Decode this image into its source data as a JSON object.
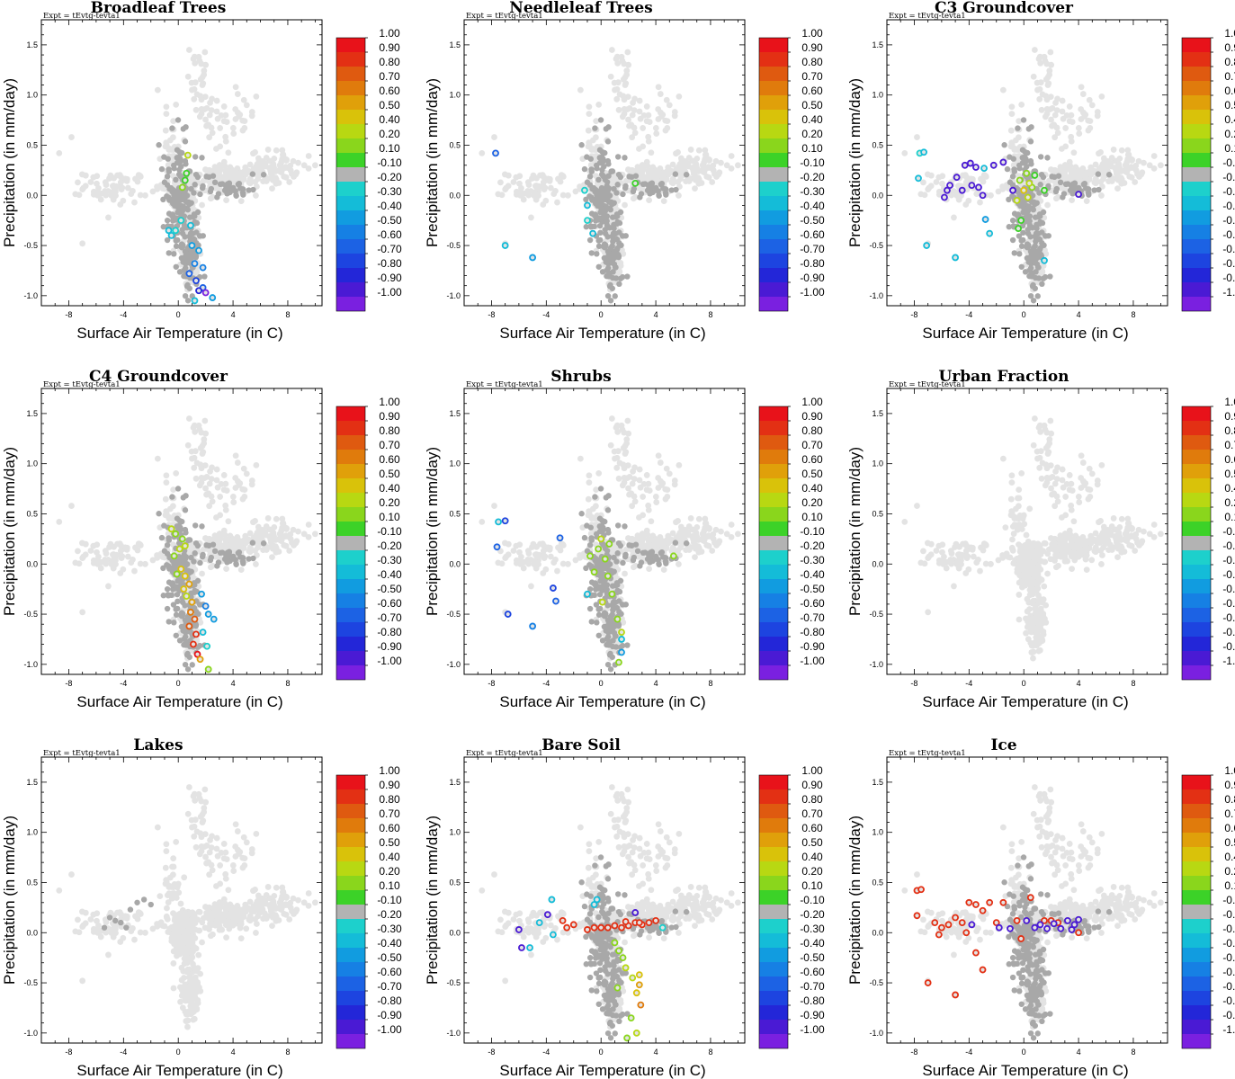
{
  "chart_data": {
    "type": "scatter",
    "shared": {
      "expt_label": "Expt = tEvtg-tevta1",
      "xlabel": "Surface Air Temperature (in C)",
      "ylabel": "Precipitation (in mm/day)",
      "xlim": [
        -10,
        10.5
      ],
      "ylim": [
        -1.1,
        1.75
      ],
      "xticks": [
        "-8",
        "-4",
        "0",
        "4",
        "8"
      ],
      "xtick_values": [
        -8,
        -4,
        0,
        4,
        8
      ],
      "yticks": [
        "-1.0",
        "-0.5",
        "0.0",
        "0.5",
        "1.0",
        "1.5"
      ],
      "ytick_values": [
        -1.0,
        -0.5,
        0.0,
        0.5,
        1.0,
        1.5
      ],
      "colorbar_labels": [
        "1.00",
        "0.90",
        "0.80",
        "0.70",
        "0.60",
        "0.50",
        "0.40",
        "0.20",
        "0.10",
        "-0.10",
        "-0.20",
        "-0.30",
        "-0.40",
        "-0.50",
        "-0.60",
        "-0.70",
        "-0.80",
        "-0.90",
        "-1.00"
      ],
      "colorbar_colors": [
        "#e8121a",
        "#e33014",
        "#df5a10",
        "#e07b0c",
        "#e0a00a",
        "#d9c20a",
        "#b8d812",
        "#8ad61c",
        "#3cd228",
        "#b3b3b3",
        "#1dd0cc",
        "#14bcd8",
        "#119ce0",
        "#1680e4",
        "#1c62e4",
        "#1d44e0",
        "#2326d8",
        "#4a1ad4",
        "#7a20e0"
      ],
      "background_color": "#e3e3e3",
      "neutral_color": "#a8a8a8"
    },
    "panels": [
      {
        "title": "Broadleaf Trees",
        "colored": [
          [
            0.6,
            0.22,
            0.1
          ],
          [
            0.3,
            0.08,
            0.2
          ],
          [
            0.5,
            0.15,
            0.1
          ],
          [
            -0.7,
            -0.35,
            -0.3
          ],
          [
            -0.5,
            -0.4,
            -0.3
          ],
          [
            1.0,
            -0.5,
            -0.4
          ],
          [
            1.5,
            -0.55,
            -0.4
          ],
          [
            1.2,
            -0.68,
            -0.5
          ],
          [
            1.8,
            -0.72,
            -0.5
          ],
          [
            0.8,
            -0.78,
            -0.6
          ],
          [
            1.3,
            -0.85,
            -0.7
          ],
          [
            1.8,
            -0.92,
            -0.6
          ],
          [
            1.5,
            -0.95,
            -0.8
          ],
          [
            2.0,
            -0.97,
            -1.0
          ],
          [
            2.5,
            -1.02,
            -0.4
          ],
          [
            1.2,
            -1.05,
            -0.3
          ],
          [
            0.2,
            -0.25,
            -0.2
          ],
          [
            -0.2,
            -0.35,
            -0.2
          ],
          [
            0.7,
            0.4,
            0.4
          ],
          [
            0.9,
            -0.3,
            -0.3
          ]
        ]
      },
      {
        "title": "Needleleaf Trees",
        "colored": [
          [
            -7.7,
            0.42,
            -0.6
          ],
          [
            -7.0,
            -0.5,
            -0.3
          ],
          [
            -5.0,
            -0.62,
            -0.4
          ],
          [
            -0.6,
            -0.38,
            -0.3
          ],
          [
            2.5,
            0.12,
            0.1
          ],
          [
            -1.2,
            0.05,
            -0.2
          ],
          [
            -1.0,
            -0.1,
            -0.3
          ],
          [
            -1.0,
            -0.25,
            -0.2
          ]
        ]
      },
      {
        "title": "C3 Groundcover",
        "colored": [
          [
            -7.6,
            0.42,
            -0.2
          ],
          [
            -7.3,
            0.43,
            -0.3
          ],
          [
            -7.7,
            0.17,
            -0.3
          ],
          [
            -7.1,
            -0.5,
            -0.3
          ],
          [
            -5.0,
            -0.62,
            -0.3
          ],
          [
            -2.9,
            0.27,
            -0.3
          ],
          [
            -2.8,
            -0.24,
            -0.4
          ],
          [
            -2.5,
            -0.38,
            -0.3
          ],
          [
            -5.6,
            0.05,
            -0.9
          ],
          [
            -5.8,
            -0.02,
            -0.9
          ],
          [
            -5.4,
            0.1,
            -0.9
          ],
          [
            -4.9,
            0.18,
            -0.9
          ],
          [
            -4.3,
            0.3,
            -0.9
          ],
          [
            -3.9,
            0.32,
            -0.9
          ],
          [
            -3.5,
            0.28,
            -0.9
          ],
          [
            -3.8,
            0.1,
            -0.9
          ],
          [
            -3.3,
            0.08,
            -0.9
          ],
          [
            -3.0,
            0.0,
            -0.9
          ],
          [
            -4.5,
            0.05,
            -0.9
          ],
          [
            -2.2,
            0.3,
            -0.9
          ],
          [
            -1.5,
            0.33,
            -0.9
          ],
          [
            -0.8,
            0.05,
            -0.9
          ],
          [
            4.0,
            0.01,
            -0.9
          ],
          [
            -0.5,
            -0.05,
            0.4
          ],
          [
            0.0,
            0.05,
            0.5
          ],
          [
            0.3,
            -0.02,
            0.4
          ],
          [
            0.6,
            0.08,
            0.2
          ],
          [
            -0.3,
            0.15,
            0.2
          ],
          [
            0.8,
            0.2,
            0.1
          ],
          [
            -0.2,
            -0.25,
            0.1
          ],
          [
            -0.4,
            -0.33,
            0.1
          ],
          [
            1.5,
            0.05,
            0.1
          ],
          [
            0.2,
            0.22,
            0.3
          ],
          [
            0.4,
            0.12,
            0.4
          ],
          [
            1.5,
            -0.65,
            -0.3
          ]
        ]
      },
      {
        "title": "C4 Groundcover",
        "colored": [
          [
            -0.5,
            0.35,
            0.4
          ],
          [
            -0.2,
            0.3,
            0.3
          ],
          [
            0.3,
            0.25,
            0.2
          ],
          [
            0.5,
            0.18,
            0.4
          ],
          [
            -0.3,
            0.08,
            0.3
          ],
          [
            0.2,
            -0.05,
            0.5
          ],
          [
            0.5,
            -0.12,
            0.5
          ],
          [
            0.8,
            -0.2,
            0.6
          ],
          [
            0.6,
            -0.32,
            0.4
          ],
          [
            1.0,
            -0.38,
            0.6
          ],
          [
            0.9,
            -0.48,
            0.7
          ],
          [
            1.2,
            -0.55,
            0.8
          ],
          [
            0.8,
            -0.62,
            0.8
          ],
          [
            1.3,
            -0.7,
            0.9
          ],
          [
            1.1,
            -0.8,
            0.9
          ],
          [
            1.4,
            -0.9,
            1.0
          ],
          [
            1.6,
            -0.95,
            0.6
          ],
          [
            2.2,
            -1.05,
            0.2
          ],
          [
            1.7,
            -0.3,
            -0.4
          ],
          [
            2.0,
            -0.42,
            -0.5
          ],
          [
            2.2,
            -0.5,
            -0.4
          ],
          [
            2.6,
            -0.55,
            -0.4
          ],
          [
            1.8,
            -0.68,
            -0.3
          ],
          [
            2.1,
            -0.82,
            -0.2
          ],
          [
            0.1,
            0.15,
            0.4
          ],
          [
            -0.1,
            -0.1,
            0.2
          ],
          [
            0.4,
            -0.25,
            0.5
          ]
        ]
      },
      {
        "title": "Shrubs",
        "colored": [
          [
            -7.5,
            0.42,
            -0.3
          ],
          [
            -7.0,
            0.43,
            -0.7
          ],
          [
            -7.6,
            0.17,
            -0.6
          ],
          [
            -6.8,
            -0.5,
            -0.7
          ],
          [
            -5.0,
            -0.62,
            -0.5
          ],
          [
            -3.0,
            0.26,
            -0.6
          ],
          [
            -3.5,
            -0.24,
            -0.7
          ],
          [
            -3.3,
            -0.37,
            -0.6
          ],
          [
            5.3,
            0.08,
            0.2
          ],
          [
            -0.2,
            0.15,
            0.2
          ],
          [
            0.0,
            0.25,
            0.4
          ],
          [
            0.3,
            0.05,
            0.3
          ],
          [
            0.5,
            -0.12,
            0.2
          ],
          [
            -0.5,
            -0.08,
            0.3
          ],
          [
            0.8,
            -0.3,
            0.2
          ],
          [
            1.2,
            -0.55,
            0.3
          ],
          [
            1.5,
            -0.68,
            0.4
          ],
          [
            1.5,
            -0.75,
            -0.3
          ],
          [
            1.5,
            -0.88,
            -0.4
          ],
          [
            1.3,
            -0.98,
            0.2
          ],
          [
            0.1,
            -0.38,
            0.4
          ],
          [
            -1.0,
            -0.3,
            -0.3
          ],
          [
            -0.8,
            0.08,
            0.2
          ],
          [
            0.6,
            0.2,
            0.3
          ]
        ]
      },
      {
        "title": "Urban Fraction",
        "colored": []
      },
      {
        "title": "Lakes",
        "colored": []
      },
      {
        "title": "Bare Soil",
        "colored": [
          [
            -5.8,
            -0.15,
            -0.9
          ],
          [
            -5.2,
            -0.15,
            -0.3
          ],
          [
            -3.6,
            0.33,
            -0.3
          ],
          [
            -3.9,
            0.18,
            -0.9
          ],
          [
            -3.5,
            -0.02,
            -0.3
          ],
          [
            -2.8,
            0.12,
            0.9
          ],
          [
            -2.5,
            0.05,
            0.9
          ],
          [
            -2.0,
            0.08,
            0.9
          ],
          [
            -1.0,
            0.03,
            0.9
          ],
          [
            -0.5,
            0.05,
            0.9
          ],
          [
            0.0,
            0.05,
            0.9
          ],
          [
            0.5,
            0.05,
            0.9
          ],
          [
            1.0,
            0.07,
            0.9
          ],
          [
            1.5,
            0.05,
            0.9
          ],
          [
            2.0,
            0.07,
            0.9
          ],
          [
            2.5,
            0.1,
            0.9
          ],
          [
            3.0,
            0.08,
            0.9
          ],
          [
            3.5,
            0.1,
            0.9
          ],
          [
            4.0,
            0.12,
            0.9
          ],
          [
            1.8,
            0.11,
            0.9
          ],
          [
            2.8,
            0.1,
            0.9
          ],
          [
            -0.5,
            0.28,
            -0.3
          ],
          [
            -0.3,
            0.33,
            -0.3
          ],
          [
            1.0,
            -0.1,
            0.2
          ],
          [
            1.3,
            -0.18,
            0.2
          ],
          [
            1.6,
            -0.25,
            0.3
          ],
          [
            1.8,
            -0.35,
            0.4
          ],
          [
            2.3,
            -0.45,
            0.4
          ],
          [
            2.8,
            -0.42,
            0.5
          ],
          [
            2.8,
            -0.52,
            0.6
          ],
          [
            2.9,
            -0.72,
            0.7
          ],
          [
            2.6,
            -0.6,
            0.5
          ],
          [
            2.2,
            -0.85,
            0.2
          ],
          [
            2.6,
            -1.0,
            0.4
          ],
          [
            1.9,
            -1.05,
            0.2
          ],
          [
            1.2,
            -0.55,
            0.2
          ],
          [
            -6.0,
            0.03,
            -0.9
          ],
          [
            2.5,
            0.2,
            -0.9
          ],
          [
            4.5,
            0.05,
            -0.2
          ],
          [
            -4.5,
            0.1,
            -0.3
          ]
        ]
      },
      {
        "title": "Ice",
        "colored": [
          [
            -7.8,
            0.42,
            0.9
          ],
          [
            -7.5,
            0.43,
            0.9
          ],
          [
            -7.8,
            0.17,
            0.9
          ],
          [
            -7.0,
            -0.5,
            0.9
          ],
          [
            -5.0,
            -0.62,
            0.9
          ],
          [
            -6.5,
            0.1,
            0.9
          ],
          [
            -6.0,
            0.05,
            0.9
          ],
          [
            -5.5,
            0.08,
            0.9
          ],
          [
            -5.0,
            0.15,
            0.9
          ],
          [
            -4.5,
            0.1,
            0.9
          ],
          [
            -4.0,
            0.3,
            0.9
          ],
          [
            -3.5,
            0.28,
            0.9
          ],
          [
            -3.0,
            0.22,
            0.9
          ],
          [
            -2.5,
            0.3,
            0.9
          ],
          [
            -2.0,
            0.1,
            0.9
          ],
          [
            -1.5,
            0.3,
            0.9
          ],
          [
            -0.5,
            0.12,
            0.9
          ],
          [
            0.5,
            0.35,
            0.9
          ],
          [
            1.5,
            0.12,
            0.9
          ],
          [
            2.0,
            0.12,
            0.9
          ],
          [
            2.5,
            0.1,
            0.9
          ],
          [
            -3.5,
            -0.2,
            0.9
          ],
          [
            -3.0,
            -0.37,
            0.9
          ],
          [
            -6.2,
            -0.02,
            0.9
          ],
          [
            -4.2,
            0.0,
            0.9
          ],
          [
            4.0,
            0.0,
            0.9
          ],
          [
            -0.2,
            -0.06,
            0.9
          ],
          [
            -3.8,
            0.08,
            -0.9
          ],
          [
            -1.8,
            0.05,
            -0.9
          ],
          [
            0.2,
            0.12,
            -0.9
          ],
          [
            0.8,
            0.05,
            -0.9
          ],
          [
            1.2,
            0.08,
            -0.9
          ],
          [
            1.7,
            0.04,
            -0.9
          ],
          [
            2.2,
            0.09,
            -0.9
          ],
          [
            2.7,
            0.04,
            -0.9
          ],
          [
            3.2,
            0.12,
            -0.9
          ],
          [
            3.7,
            0.08,
            -0.9
          ],
          [
            4.0,
            0.13,
            -0.9
          ],
          [
            -1.0,
            0.04,
            -0.9
          ],
          [
            3.5,
            0.03,
            -0.9
          ]
        ]
      }
    ]
  }
}
